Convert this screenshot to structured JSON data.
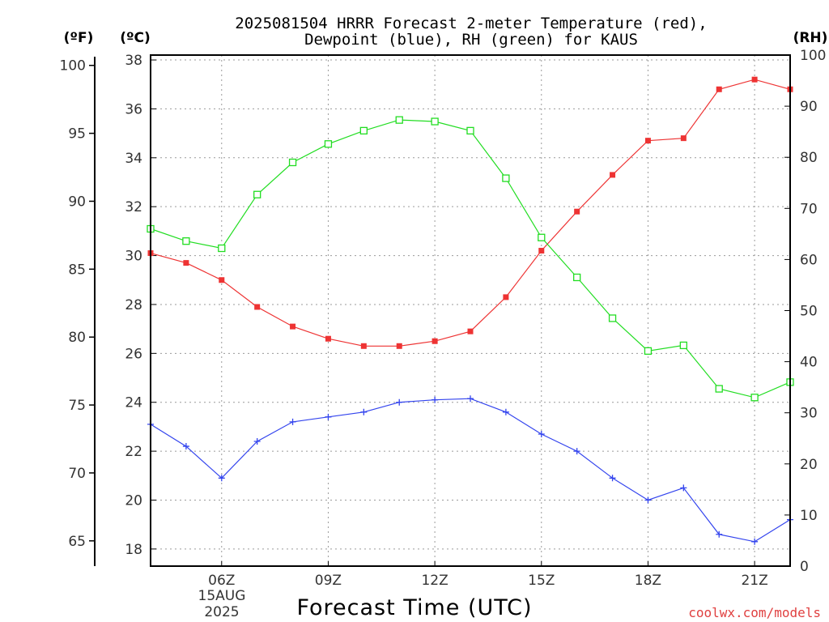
{
  "chart_data": {
    "type": "line",
    "title_line1": "2025081504 HRRR Forecast 2-meter Temperature (red),",
    "title_line2": "Dewpoint (blue), RH (green) for KAUS",
    "xlabel": "Forecast Time (UTC)",
    "x": [
      "04Z",
      "05Z",
      "06Z",
      "07Z",
      "08Z",
      "09Z",
      "10Z",
      "11Z",
      "12Z",
      "13Z",
      "14Z",
      "15Z",
      "16Z",
      "17Z",
      "18Z",
      "19Z",
      "20Z",
      "21Z",
      "22Z"
    ],
    "x_tick_labels": [
      "06Z",
      "09Z",
      "12Z",
      "15Z",
      "18Z",
      "21Z"
    ],
    "date_label_line1": "15AUG",
    "date_label_line2": "2025",
    "axes": {
      "fahrenheit": {
        "unit_label": "(ºF)",
        "ticks": [
          "65",
          "70",
          "75",
          "80",
          "85",
          "90",
          "95",
          "100"
        ]
      },
      "celsius": {
        "unit_label": "(ºC)",
        "ticks": [
          "18",
          "20",
          "22",
          "24",
          "26",
          "28",
          "30",
          "32",
          "34",
          "36",
          "38"
        ],
        "ylim": [
          17.3,
          38.2
        ]
      },
      "rh": {
        "unit_label": "(RH)",
        "ticks": [
          "0",
          "10",
          "20",
          "30",
          "40",
          "50",
          "60",
          "70",
          "80",
          "90",
          "100"
        ],
        "ylim": [
          0,
          100
        ]
      }
    },
    "grid": true,
    "series": [
      {
        "name": "Temperature",
        "color": "#ee3333",
        "marker": "filled-square",
        "axis": "celsius",
        "values": [
          30.1,
          29.7,
          29.0,
          27.9,
          27.1,
          26.6,
          26.3,
          26.3,
          26.5,
          26.9,
          28.3,
          30.2,
          31.8,
          33.3,
          34.7,
          34.8,
          36.8,
          37.2,
          36.8
        ]
      },
      {
        "name": "Dewpoint",
        "color": "#3344ee",
        "marker": "plus",
        "axis": "celsius",
        "values": [
          23.1,
          22.2,
          20.9,
          22.4,
          23.2,
          23.4,
          23.6,
          24.0,
          24.1,
          24.15,
          23.6,
          22.7,
          22.0,
          20.9,
          20.0,
          20.5,
          18.6,
          18.3,
          19.2
        ]
      },
      {
        "name": "RH",
        "color": "#22dd22",
        "marker": "open-square",
        "axis": "rh",
        "values": [
          66.0,
          63.6,
          62.2,
          72.7,
          79.0,
          82.6,
          85.2,
          87.3,
          87.0,
          85.2,
          75.9,
          64.3,
          56.5,
          48.5,
          42.1,
          43.2,
          34.7,
          33.0,
          36.0
        ]
      }
    ]
  },
  "credit": "coolwx.com/models"
}
